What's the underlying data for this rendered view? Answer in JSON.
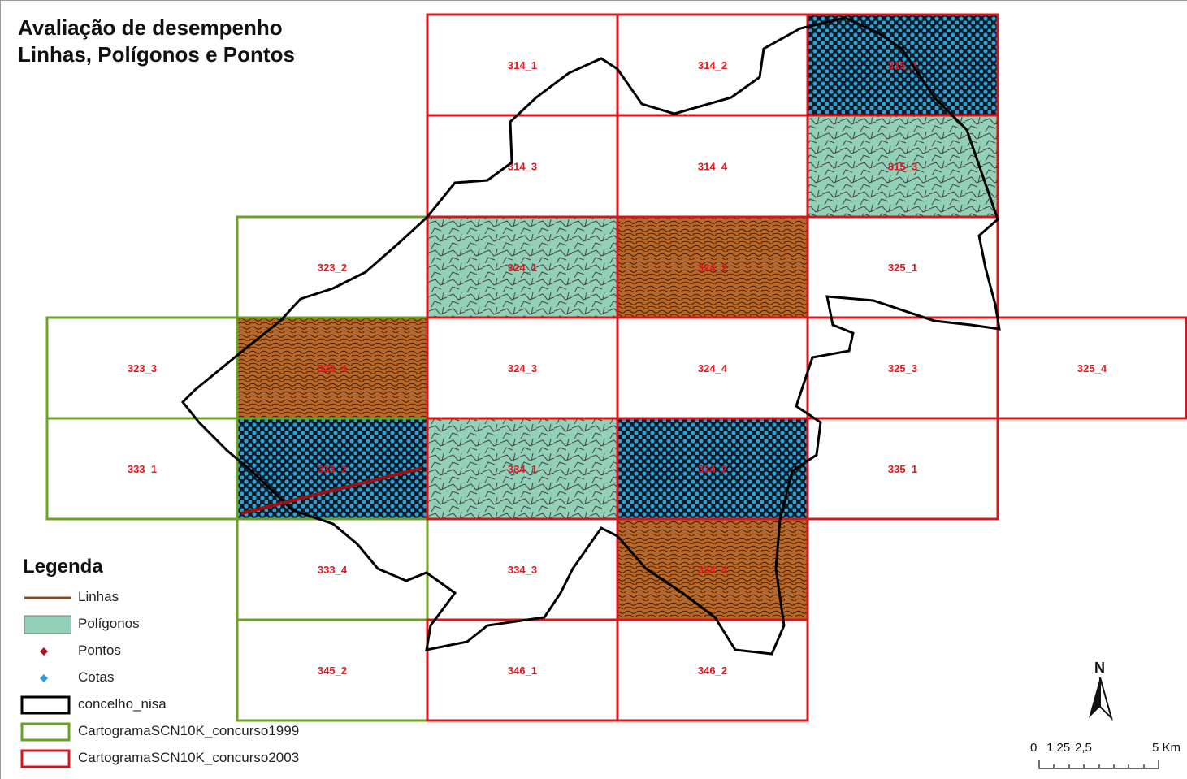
{
  "title": {
    "line1": "Avaliação de desempenho",
    "line2": "Linhas, Polígonos e Pontos"
  },
  "legend": {
    "title": "Legenda",
    "items": [
      {
        "label": "Linhas",
        "symbol": "line",
        "color": "#8b4a1c"
      },
      {
        "label": "Polígonos",
        "symbol": "fill",
        "color": "#92d0b8"
      },
      {
        "label": "Pontos",
        "symbol": "dot",
        "color": "#b3141a"
      },
      {
        "label": "Cotas",
        "symbol": "dot",
        "color": "#2aa2d6"
      },
      {
        "label": "concelho_nisa",
        "symbol": "box",
        "color": "#000000"
      },
      {
        "label": "CartogramaSCN10K_concurso1999",
        "symbol": "box",
        "color": "#6aa321"
      },
      {
        "label": "CartogramaSCN10K_concurso2003",
        "symbol": "box",
        "color": "#d8141c"
      }
    ]
  },
  "grid_cells": [
    {
      "id": "314_1",
      "series": "2003",
      "fill": "none"
    },
    {
      "id": "314_2",
      "series": "2003",
      "fill": "none"
    },
    {
      "id": "315_1",
      "series": "2003",
      "fill": "points"
    },
    {
      "id": "314_3",
      "series": "2003",
      "fill": "none"
    },
    {
      "id": "314_4",
      "series": "2003",
      "fill": "none"
    },
    {
      "id": "315_3",
      "series": "2003",
      "fill": "polygons"
    },
    {
      "id": "323_2",
      "series": "1999",
      "fill": "none"
    },
    {
      "id": "324_1",
      "series": "2003",
      "fill": "polygons"
    },
    {
      "id": "324_2",
      "series": "2003",
      "fill": "lines"
    },
    {
      "id": "325_1",
      "series": "2003",
      "fill": "none"
    },
    {
      "id": "323_3",
      "series": "1999",
      "fill": "none"
    },
    {
      "id": "323_4",
      "series": "1999",
      "fill": "lines"
    },
    {
      "id": "324_3",
      "series": "2003",
      "fill": "none"
    },
    {
      "id": "324_4",
      "series": "2003",
      "fill": "none"
    },
    {
      "id": "325_3",
      "series": "2003",
      "fill": "none"
    },
    {
      "id": "325_4",
      "series": "2003",
      "fill": "none"
    },
    {
      "id": "333_1",
      "series": "1999",
      "fill": "none"
    },
    {
      "id": "333_2",
      "series": "1999",
      "fill": "points"
    },
    {
      "id": "334_1",
      "series": "2003",
      "fill": "polygons"
    },
    {
      "id": "334_2",
      "series": "2003",
      "fill": "points"
    },
    {
      "id": "335_1",
      "series": "2003",
      "fill": "none"
    },
    {
      "id": "333_4",
      "series": "1999",
      "fill": "none"
    },
    {
      "id": "334_3",
      "series": "1999",
      "fill": "none"
    },
    {
      "id": "334_4",
      "series": "2003",
      "fill": "lines"
    },
    {
      "id": "345_2",
      "series": "1999",
      "fill": "none"
    },
    {
      "id": "346_1",
      "series": "2003",
      "fill": "none"
    },
    {
      "id": "346_2",
      "series": "2003",
      "fill": "none"
    }
  ],
  "north": "N",
  "scale": {
    "ticks": [
      "0",
      "1,25",
      "2,5",
      "5 Km"
    ]
  },
  "colors": {
    "series_1999": "#6aa321",
    "series_2003": "#d8141c",
    "polygon_fill": "#92d0b8",
    "line_fill": "#b8692a",
    "points_fill": "#1f8fc4",
    "boundary": "#000000",
    "label": "#e8141c"
  }
}
